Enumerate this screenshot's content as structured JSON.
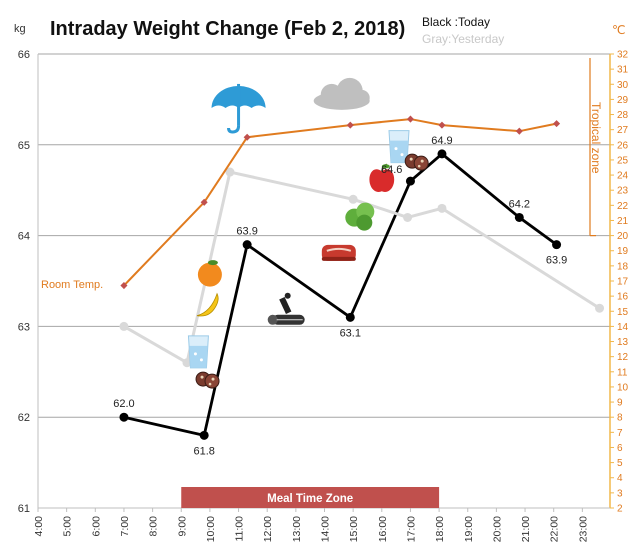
{
  "chart_data": {
    "type": "line",
    "title": "Intraday Weight Change (Feb 2, 2018)",
    "legend": {
      "today": "Black :Today",
      "yesterday": "Gray:Yesterday"
    },
    "y_unit_left": "kg",
    "y_unit_right": "℃",
    "ylim": [
      61,
      66
    ],
    "y2lim": [
      2,
      32
    ],
    "xlim": [
      4,
      24
    ],
    "x_ticks": [
      "4:00",
      "5:00",
      "6:00",
      "7:00",
      "8:00",
      "9:00",
      "10:00",
      "11:00",
      "12:00",
      "13:00",
      "14:00",
      "15:00",
      "16:00",
      "17:00",
      "18:00",
      "19:00",
      "20:00",
      "21:00",
      "22:00",
      "23:00"
    ],
    "y_ticks": [
      "61",
      "62",
      "63",
      "64",
      "65",
      "66"
    ],
    "y2_ticks": [
      "2",
      "3",
      "4",
      "5",
      "6",
      "7",
      "8",
      "9",
      "10",
      "11",
      "12",
      "13",
      "14",
      "15",
      "16",
      "17",
      "18",
      "19",
      "20",
      "21",
      "22",
      "23",
      "24",
      "25",
      "26",
      "27",
      "28",
      "29",
      "30",
      "31",
      "32"
    ],
    "series": [
      {
        "name": "Today",
        "color": "#000000",
        "points": [
          {
            "x": 7.0,
            "y": 62.0,
            "label": "62.0"
          },
          {
            "x": 9.8,
            "y": 61.8,
            "label": "61.8"
          },
          {
            "x": 11.3,
            "y": 63.9,
            "label": "63.9"
          },
          {
            "x": 14.9,
            "y": 63.1,
            "label": "63.1"
          },
          {
            "x": 17.0,
            "y": 64.6,
            "label": "64.6"
          },
          {
            "x": 18.1,
            "y": 64.9,
            "label": "64.9"
          },
          {
            "x": 20.8,
            "y": 64.2,
            "label": "64.2"
          },
          {
            "x": 22.1,
            "y": 63.9,
            "label": "63.9"
          }
        ]
      },
      {
        "name": "Yesterday",
        "color": "#d9d9d9",
        "points": [
          {
            "x": 7.0,
            "y": 63.0
          },
          {
            "x": 9.2,
            "y": 62.6
          },
          {
            "x": 10.7,
            "y": 64.7
          },
          {
            "x": 15.0,
            "y": 64.4
          },
          {
            "x": 16.9,
            "y": 64.2
          },
          {
            "x": 18.1,
            "y": 64.3
          },
          {
            "x": 23.6,
            "y": 63.2
          }
        ]
      },
      {
        "name": "Room Temp.",
        "axis": "right",
        "color": "#e07b1f",
        "points": [
          {
            "x": 7.0,
            "y": 16.7
          },
          {
            "x": 9.8,
            "y": 22.2
          },
          {
            "x": 11.3,
            "y": 26.5
          },
          {
            "x": 14.9,
            "y": 27.3
          },
          {
            "x": 17.0,
            "y": 27.7
          },
          {
            "x": 18.1,
            "y": 27.3
          },
          {
            "x": 20.8,
            "y": 26.9
          },
          {
            "x": 22.1,
            "y": 27.4
          }
        ]
      }
    ],
    "annotations": {
      "room_temp_label": "Room Temp.",
      "tropical_zone_label": "Tropical zone",
      "tropical_zone_from": 20,
      "meal_time_zone": {
        "label": "Meal Time Zone",
        "from": 9.0,
        "to": 18.0
      }
    },
    "icons": [
      {
        "name": "umbrella-icon",
        "x": 11.0,
        "y": 65.45
      },
      {
        "name": "cloud-icon",
        "x": 14.6,
        "y": 65.55
      },
      {
        "name": "water-glass-icon",
        "x": 9.6,
        "y": 62.72
      },
      {
        "name": "water-glass-icon",
        "x": 16.6,
        "y": 64.98
      },
      {
        "name": "nut-cookie-icon",
        "x": 9.9,
        "y": 62.42
      },
      {
        "name": "nut-cookie-icon",
        "x": 17.2,
        "y": 64.82
      },
      {
        "name": "orange-icon",
        "x": 10.0,
        "y": 63.57
      },
      {
        "name": "banana-icon",
        "x": 9.9,
        "y": 63.25
      },
      {
        "name": "apple-icon",
        "x": 16.0,
        "y": 64.62
      },
      {
        "name": "lettuce-icon",
        "x": 15.25,
        "y": 64.22
      },
      {
        "name": "steak-icon",
        "x": 14.5,
        "y": 63.81
      },
      {
        "name": "microscope-log-icon",
        "x": 12.75,
        "y": 63.15
      }
    ],
    "colors": {
      "today": "#000000",
      "yesterday": "#d9d9d9",
      "room_temp": "#e07b1f",
      "right_axis": "#f2b84b",
      "meal_zone": "#c0504d",
      "grid": "#a6a6a6"
    }
  }
}
